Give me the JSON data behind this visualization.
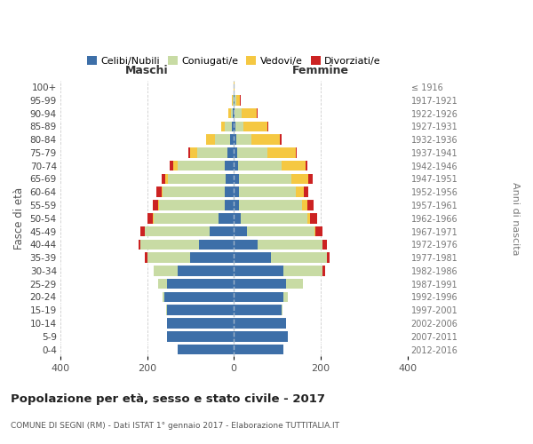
{
  "age_groups": [
    "0-4",
    "5-9",
    "10-14",
    "15-19",
    "20-24",
    "25-29",
    "30-34",
    "35-39",
    "40-44",
    "45-49",
    "50-54",
    "55-59",
    "60-64",
    "65-69",
    "70-74",
    "75-79",
    "80-84",
    "85-89",
    "90-94",
    "95-99",
    "100+"
  ],
  "birth_years": [
    "2012-2016",
    "2007-2011",
    "2002-2006",
    "1997-2001",
    "1992-1996",
    "1987-1991",
    "1982-1986",
    "1977-1981",
    "1972-1976",
    "1967-1971",
    "1962-1966",
    "1957-1961",
    "1952-1956",
    "1947-1951",
    "1942-1946",
    "1937-1941",
    "1932-1936",
    "1927-1931",
    "1922-1926",
    "1917-1921",
    "≤ 1916"
  ],
  "maschi": {
    "celibi": [
      130,
      155,
      155,
      155,
      160,
      155,
      130,
      100,
      80,
      55,
      35,
      22,
      20,
      18,
      20,
      15,
      8,
      5,
      2,
      1,
      0
    ],
    "coniugati": [
      0,
      0,
      0,
      2,
      5,
      20,
      55,
      100,
      135,
      150,
      150,
      150,
      145,
      135,
      110,
      70,
      35,
      15,
      5,
      2,
      0
    ],
    "vedovi": [
      0,
      0,
      0,
      0,
      0,
      0,
      0,
      0,
      0,
      0,
      2,
      2,
      2,
      5,
      10,
      15,
      20,
      10,
      5,
      2,
      0
    ],
    "divorziati": [
      0,
      0,
      0,
      0,
      0,
      0,
      0,
      5,
      5,
      10,
      12,
      12,
      12,
      8,
      8,
      5,
      2,
      0,
      0,
      0,
      0
    ]
  },
  "femmine": {
    "nubili": [
      115,
      125,
      120,
      110,
      115,
      120,
      115,
      85,
      55,
      30,
      15,
      12,
      12,
      12,
      10,
      8,
      5,
      3,
      2,
      1,
      0
    ],
    "coniugate": [
      0,
      0,
      0,
      2,
      10,
      40,
      90,
      130,
      150,
      155,
      155,
      145,
      130,
      120,
      100,
      70,
      35,
      20,
      15,
      5,
      0
    ],
    "vedove": [
      0,
      0,
      0,
      0,
      0,
      0,
      0,
      0,
      0,
      2,
      5,
      12,
      20,
      40,
      55,
      65,
      65,
      55,
      35,
      8,
      2
    ],
    "divorziate": [
      0,
      0,
      0,
      0,
      0,
      0,
      5,
      5,
      10,
      18,
      18,
      15,
      10,
      10,
      5,
      2,
      5,
      2,
      2,
      2,
      0
    ]
  },
  "colors": {
    "celibi": "#3d6fa8",
    "coniugati": "#c8dba4",
    "vedovi": "#f5c842",
    "divorziati": "#cc2222"
  },
  "title": "Popolazione per età, sesso e stato civile - 2017",
  "subtitle": "COMUNE DI SEGNI (RM) - Dati ISTAT 1° gennaio 2017 - Elaborazione TUTTITALIA.IT",
  "ylabel": "Fasce di età",
  "ylabel_right": "Anni di nascita",
  "xlabel_maschi": "Maschi",
  "xlabel_femmine": "Femmine",
  "xlim": 400,
  "legend_labels": [
    "Celibi/Nubili",
    "Coniugati/e",
    "Vedovi/e",
    "Divorziati/e"
  ],
  "background_color": "#ffffff",
  "grid_color": "#cccccc"
}
